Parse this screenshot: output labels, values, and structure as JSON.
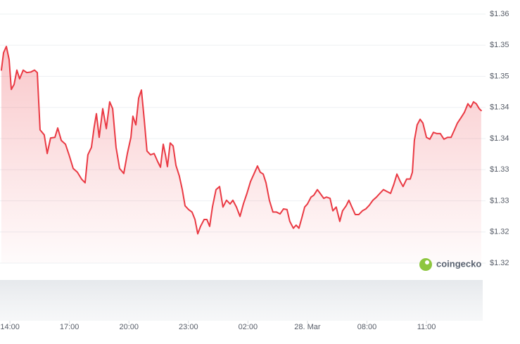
{
  "chart_data": {
    "type": "area",
    "color": "#ea3943",
    "watermark": "coingecko",
    "xlim": [
      13.5,
      37.8
    ],
    "ylim": [
      1.32,
      1.36
    ],
    "grid": true,
    "yticks": [
      {
        "value": 1.36,
        "label": "$1.36"
      },
      {
        "value": 1.355,
        "label": "$1.35"
      },
      {
        "value": 1.35,
        "label": "$1.35"
      },
      {
        "value": 1.345,
        "label": "$1.34"
      },
      {
        "value": 1.34,
        "label": "$1.34"
      },
      {
        "value": 1.335,
        "label": "$1.33"
      },
      {
        "value": 1.33,
        "label": "$1.33"
      },
      {
        "value": 1.325,
        "label": "$1.32"
      },
      {
        "value": 1.32,
        "label": "$1.32"
      }
    ],
    "xticks": [
      {
        "value": 14,
        "label": "14:00"
      },
      {
        "value": 17,
        "label": "17:00"
      },
      {
        "value": 20,
        "label": "20:00"
      },
      {
        "value": 23,
        "label": "23:00"
      },
      {
        "value": 26,
        "label": "02:00"
      },
      {
        "value": 29,
        "label": "28. Mar"
      },
      {
        "value": 32,
        "label": "08:00"
      },
      {
        "value": 35,
        "label": "11:00"
      }
    ],
    "x": [
      13.57,
      13.68,
      13.82,
      13.96,
      14.07,
      14.21,
      14.35,
      14.49,
      14.67,
      14.85,
      15.06,
      15.24,
      15.38,
      15.52,
      15.73,
      15.88,
      16.05,
      16.27,
      16.41,
      16.59,
      16.8,
      16.98,
      17.19,
      17.4,
      17.61,
      17.79,
      17.93,
      18.11,
      18.25,
      18.36,
      18.5,
      18.68,
      18.86,
      19.03,
      19.18,
      19.35,
      19.53,
      19.74,
      19.92,
      20.1,
      20.2,
      20.35,
      20.49,
      20.63,
      20.77,
      20.91,
      21.09,
      21.27,
      21.45,
      21.59,
      21.73,
      21.84,
      21.94,
      22.08,
      22.23,
      22.37,
      22.54,
      22.69,
      22.83,
      23.01,
      23.18,
      23.33,
      23.47,
      23.61,
      23.79,
      23.93,
      24.07,
      24.21,
      24.39,
      24.57,
      24.74,
      24.92,
      25.1,
      25.24,
      25.42,
      25.6,
      25.77,
      25.95,
      26.13,
      26.3,
      26.48,
      26.62,
      26.77,
      26.91,
      27.08,
      27.26,
      27.44,
      27.62,
      27.79,
      27.97,
      28.11,
      28.29,
      28.43,
      28.57,
      28.72,
      28.86,
      29.0,
      29.18,
      29.32,
      29.5,
      29.64,
      29.82,
      29.96,
      30.14,
      30.28,
      30.45,
      30.63,
      30.77,
      30.95,
      31.09,
      31.24,
      31.41,
      31.59,
      31.77,
      31.94,
      32.12,
      32.3,
      32.48,
      32.65,
      32.83,
      33.01,
      33.19,
      33.36,
      33.51,
      33.68,
      33.82,
      34.0,
      34.18,
      34.29,
      34.39,
      34.53,
      34.68,
      34.82,
      35.0,
      35.17,
      35.35,
      35.53,
      35.7,
      35.88,
      36.06,
      36.24,
      36.41,
      36.56,
      36.73,
      36.91,
      37.09,
      37.23,
      37.37,
      37.51,
      37.66,
      37.76
    ],
    "values": [
      1.351,
      1.3538,
      1.3548,
      1.3527,
      1.3479,
      1.3487,
      1.351,
      1.3496,
      1.351,
      1.3506,
      1.3507,
      1.351,
      1.3506,
      1.3414,
      1.3406,
      1.3376,
      1.3401,
      1.3402,
      1.3417,
      1.3397,
      1.3391,
      1.3374,
      1.3352,
      1.3346,
      1.3335,
      1.3329,
      1.3374,
      1.3386,
      1.3419,
      1.344,
      1.3402,
      1.3448,
      1.3416,
      1.3459,
      1.3448,
      1.3386,
      1.3352,
      1.3344,
      1.3376,
      1.3402,
      1.3436,
      1.3422,
      1.3465,
      1.3478,
      1.3431,
      1.338,
      1.3374,
      1.3376,
      1.3363,
      1.3354,
      1.3391,
      1.3374,
      1.3355,
      1.3393,
      1.3388,
      1.3357,
      1.334,
      1.3318,
      1.3292,
      1.3286,
      1.3282,
      1.327,
      1.3247,
      1.3259,
      1.327,
      1.327,
      1.3259,
      1.329,
      1.3318,
      1.3323,
      1.329,
      1.3301,
      1.3295,
      1.3301,
      1.329,
      1.3275,
      1.3295,
      1.3312,
      1.3331,
      1.3343,
      1.3356,
      1.3346,
      1.3343,
      1.3329,
      1.3301,
      1.3282,
      1.3282,
      1.3279,
      1.3287,
      1.3286,
      1.3267,
      1.3256,
      1.3261,
      1.3256,
      1.3273,
      1.329,
      1.3295,
      1.3306,
      1.3309,
      1.3318,
      1.3312,
      1.3304,
      1.3306,
      1.3304,
      1.3284,
      1.329,
      1.3267,
      1.3284,
      1.3292,
      1.3301,
      1.329,
      1.3278,
      1.3278,
      1.3284,
      1.3287,
      1.3293,
      1.3301,
      1.3306,
      1.3312,
      1.3318,
      1.3315,
      1.3312,
      1.3327,
      1.3343,
      1.3331,
      1.3323,
      1.3335,
      1.3335,
      1.3346,
      1.3397,
      1.3422,
      1.3431,
      1.3425,
      1.3402,
      1.3399,
      1.341,
      1.3408,
      1.3408,
      1.3399,
      1.3402,
      1.3402,
      1.3414,
      1.3425,
      1.3433,
      1.3442,
      1.3456,
      1.345,
      1.3459,
      1.3456,
      1.3448,
      1.3445
    ]
  }
}
